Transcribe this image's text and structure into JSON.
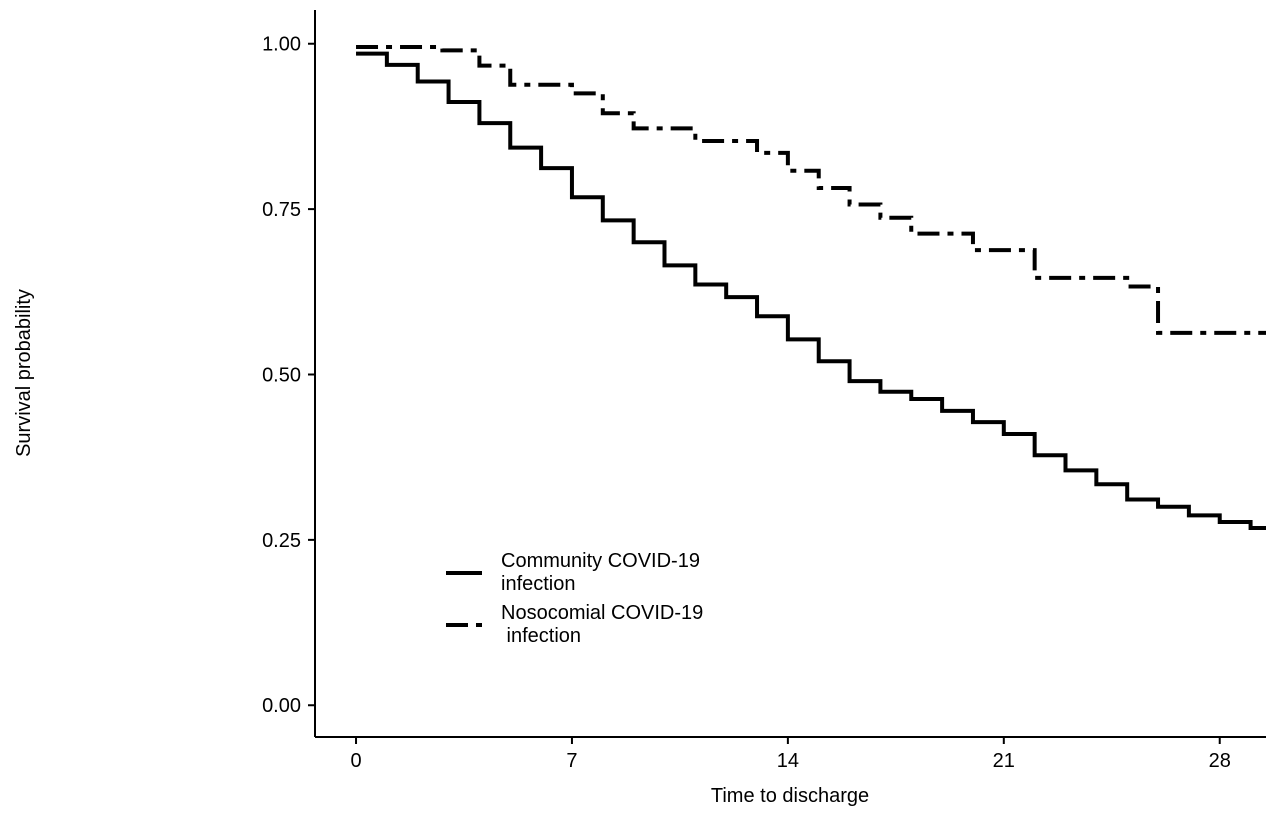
{
  "chart_data": {
    "type": "step",
    "y_label": "Survival probability",
    "x_label": "Time to discharge",
    "xlim": [
      -1.33,
      29.5
    ],
    "ylim": [
      -0.048,
      1.051
    ],
    "xticks": [
      0,
      7,
      14,
      21,
      28
    ],
    "yticks": [
      {
        "value": 0,
        "label": "0.00"
      },
      0.25,
      {
        "value": 0.5,
        "label": "0.50"
      },
      0.75,
      {
        "value": 1,
        "label": "1.00"
      }
    ],
    "legend": "bottom-left",
    "series": [
      {
        "name": "Community COVID-19\ninfection",
        "color": "#000000",
        "dash": "solid",
        "x": [
          0,
          1,
          2,
          3,
          4,
          5,
          6,
          7,
          8,
          9,
          10,
          11,
          12,
          13,
          14,
          15,
          16,
          17,
          18,
          19,
          20,
          21,
          22,
          23,
          24,
          25,
          26,
          27,
          28,
          29
        ],
        "values": [
          0.985,
          0.968,
          0.943,
          0.912,
          0.88,
          0.843,
          0.812,
          0.768,
          0.733,
          0.7,
          0.665,
          0.636,
          0.617,
          0.588,
          0.553,
          0.52,
          0.49,
          0.474,
          0.463,
          0.445,
          0.428,
          0.41,
          0.378,
          0.355,
          0.334,
          0.311,
          0.3,
          0.287,
          0.277,
          0.268
        ]
      },
      {
        "name": "Nosocomial COVID-19\n infection",
        "color": "#000000",
        "dash": "dashdot",
        "x": [
          0,
          2.8,
          4,
          5,
          7,
          8,
          9,
          11,
          13,
          14,
          15,
          16,
          17,
          18,
          20,
          22,
          25,
          26
        ],
        "values": [
          0.995,
          0.99,
          0.967,
          0.938,
          0.925,
          0.895,
          0.872,
          0.853,
          0.835,
          0.808,
          0.782,
          0.757,
          0.737,
          0.713,
          0.688,
          0.646,
          0.633,
          0.563
        ]
      }
    ]
  }
}
